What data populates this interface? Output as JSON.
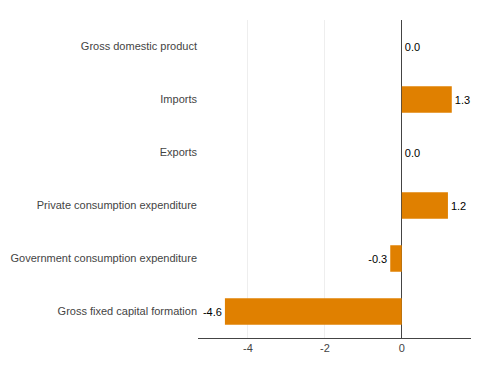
{
  "chart_data": {
    "type": "bar",
    "orientation": "horizontal",
    "categories": [
      "Gross fixed capital formation",
      "Government consumption expenditure",
      "Private consumption expenditure",
      "Exports",
      "Imports",
      "Gross domestic product"
    ],
    "values": [
      -4.6,
      -0.3,
      1.2,
      0.0,
      1.3,
      0.0
    ],
    "value_labels": [
      "-4.6",
      "-0.3",
      "1.2",
      "0.0",
      "1.3",
      "0.0"
    ],
    "data_labels": true,
    "color": "#E08000",
    "xlim": [
      -5.3,
      1.8
    ],
    "xticks": [
      -4,
      -2,
      0
    ],
    "grid": true
  }
}
